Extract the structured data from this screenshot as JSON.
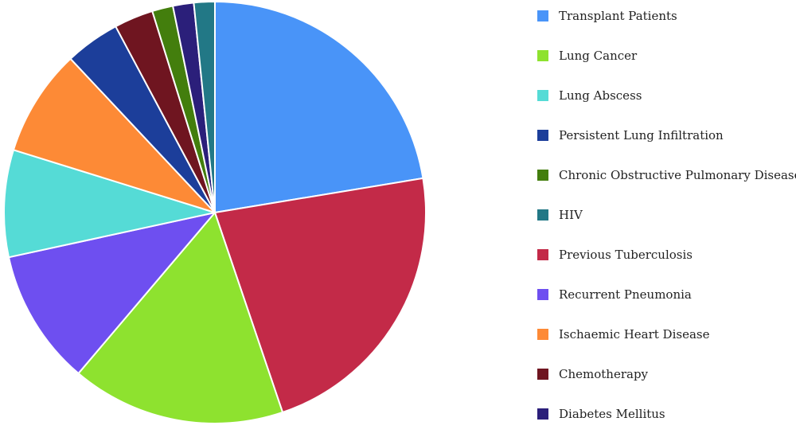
{
  "chart_data": {
    "type": "pie",
    "start_angle_deg": 0,
    "slices": [
      {
        "name": "Transplant Patients",
        "value": 22.4,
        "color": "#4994f8"
      },
      {
        "name": "Previous Tuberculosis",
        "value": 22.4,
        "color": "#c32a48"
      },
      {
        "name": "Lung Cancer",
        "value": 16.4,
        "color": "#8ee22f"
      },
      {
        "name": "Recurrent Pneumonia",
        "value": 10.4,
        "color": "#6e4ff0"
      },
      {
        "name": "Lung Abscess",
        "value": 8.2,
        "color": "#55dbd6"
      },
      {
        "name": "Ischaemic Heart Disease",
        "value": 8.2,
        "color": "#fd8a36"
      },
      {
        "name": "Persistent Lung Infiltration",
        "value": 4.2,
        "color": "#1c3e9a"
      },
      {
        "name": "Chemotherapy",
        "value": 3.0,
        "color": "#6f1520"
      },
      {
        "name": "Chronic Obstructive Pulmonary Disease",
        "value": 1.6,
        "color": "#437e0d"
      },
      {
        "name": "Diabetes Mellitus",
        "value": 1.6,
        "color": "#2b1f7a"
      },
      {
        "name": "HIV",
        "value": 1.6,
        "color": "#227886"
      }
    ],
    "legend_position": "right",
    "legend": [
      {
        "label": "Transplant Patients",
        "color": "#4994f8"
      },
      {
        "label": "Lung Cancer",
        "color": "#8ee22f"
      },
      {
        "label": "Lung Abscess",
        "color": "#55dbd6"
      },
      {
        "label": "Persistent Lung Infiltration",
        "color": "#1c3e9a"
      },
      {
        "label": "Chronic Obstructive Pulmonary Disease",
        "color": "#437e0d"
      },
      {
        "label": "HIV",
        "color": "#227886"
      },
      {
        "label": "Previous Tuberculosis",
        "color": "#c32a48"
      },
      {
        "label": "Recurrent Pneumonia",
        "color": "#6e4ff0"
      },
      {
        "label": "Ischaemic Heart Disease",
        "color": "#fd8a36"
      },
      {
        "label": "Chemotherapy",
        "color": "#6f1520"
      },
      {
        "label": "Diabetes Mellitus",
        "color": "#2b1f7a"
      }
    ]
  }
}
